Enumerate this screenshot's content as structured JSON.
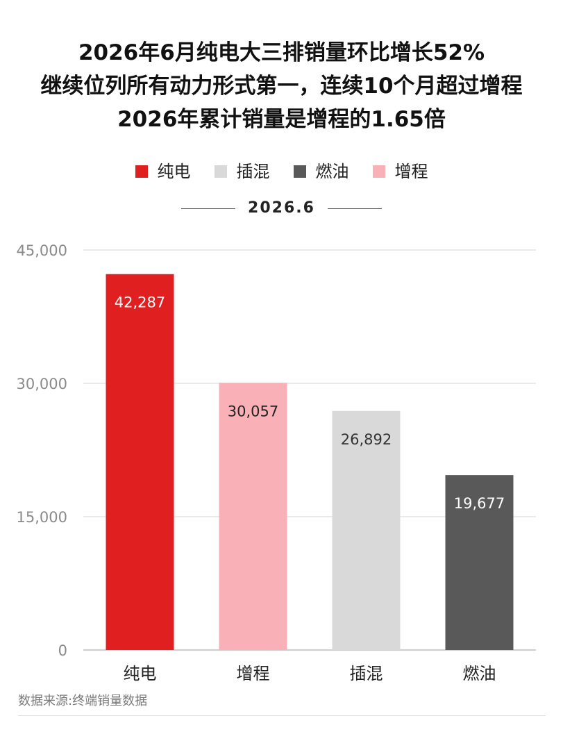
{
  "title_lines": [
    "2026年6月纯电大三排销量环比增长52%",
    "继续位列所有动力形式第一，连续10个月超过增程",
    "2026年累计销量是增程的1.65倍"
  ],
  "legend": [
    {
      "label": "纯电",
      "color": "#e02020"
    },
    {
      "label": "插混",
      "color": "#d9d9d9"
    },
    {
      "label": "燃油",
      "color": "#595959"
    },
    {
      "label": "增程",
      "color": "#f9b0b6"
    }
  ],
  "subtitle": "2026.6",
  "source": "数据来源:终端销量数据",
  "chart_data": {
    "type": "bar",
    "categories": [
      "纯电",
      "增程",
      "插混",
      "燃油"
    ],
    "values": [
      42287,
      30057,
      26892,
      19677
    ],
    "value_labels": [
      "42,287",
      "30,057",
      "26,892",
      "19,677"
    ],
    "colors": [
      "#e02020",
      "#f9b0b6",
      "#d9d9d9",
      "#595959"
    ],
    "label_colors": [
      "#ffffff",
      "#222222",
      "#333333",
      "#ffffff"
    ],
    "ylim": [
      0,
      45000
    ],
    "yticks": [
      0,
      15000,
      30000,
      45000
    ],
    "ytick_labels": [
      "0",
      "15,000",
      "30,000",
      "45,000"
    ],
    "grid": true,
    "legend_position": "top-center"
  }
}
